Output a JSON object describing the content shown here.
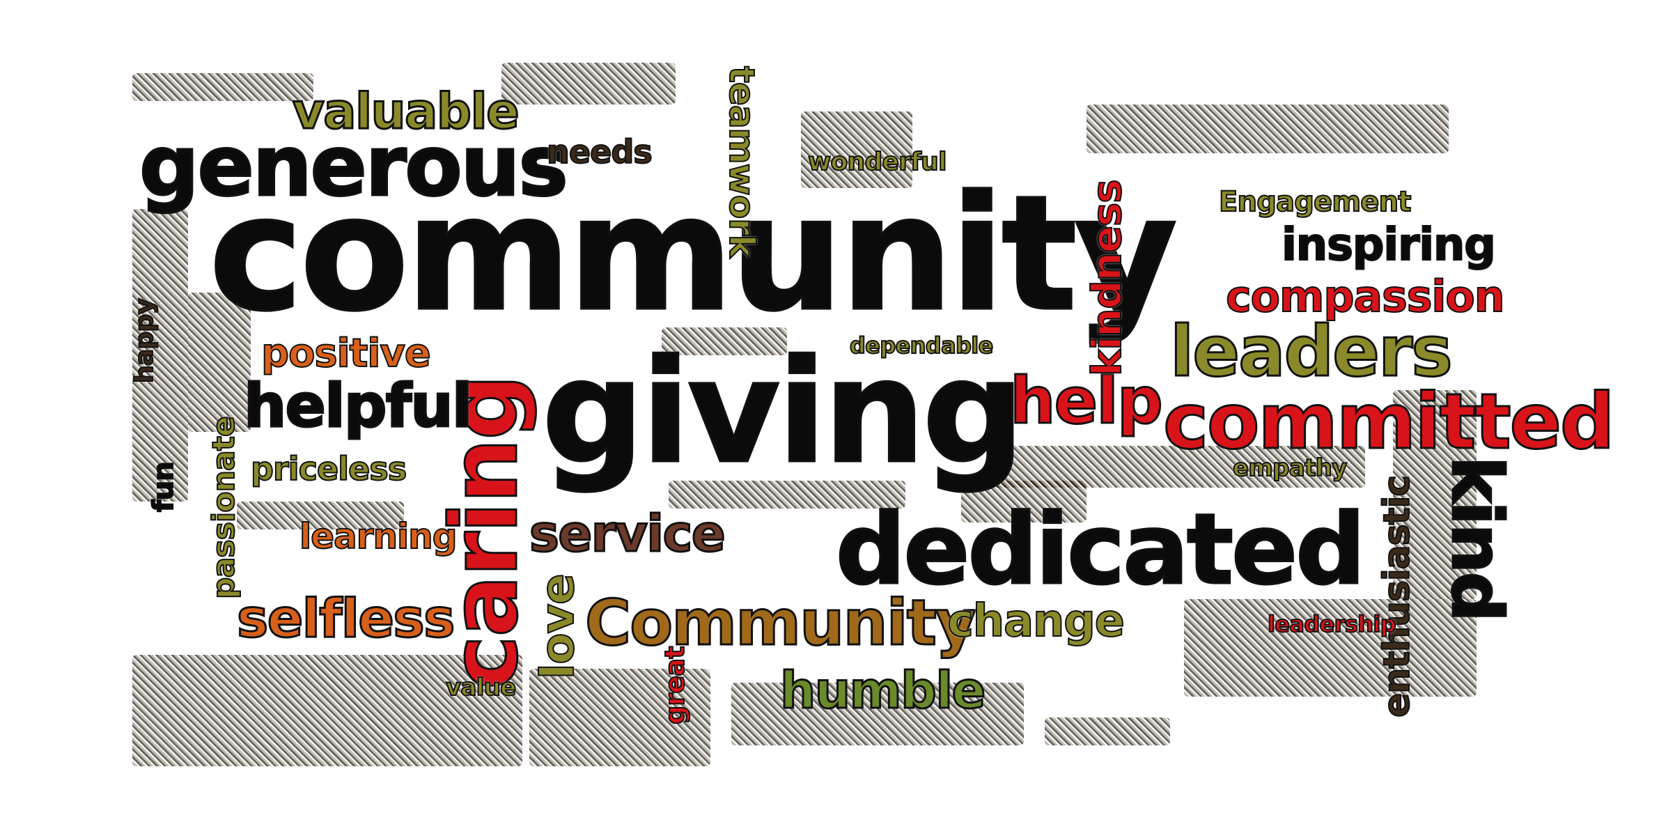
{
  "words": {
    "community": "community",
    "giving": "giving",
    "caring": "caring",
    "dedicated": "dedicated",
    "generous": "generous",
    "committed": "committed",
    "leaders": "leaders",
    "helpful": "helpful",
    "help": "help",
    "kind": "kind",
    "kindness": "kindness",
    "Community": "Community",
    "service": "service",
    "selfless": "selfless",
    "valuable": "valuable",
    "compassion": "compassion",
    "inspiring": "inspiring",
    "positive": "positive",
    "humble": "humble",
    "change": "change",
    "love": "love",
    "learning": "learning",
    "teamwork": "teamwork",
    "enthusiastic": "enthusiastic",
    "passionate": "passionate",
    "priceless": "priceless",
    "needs": "needs",
    "fun": "fun",
    "value": "value",
    "great": "great",
    "Engagement": "Engagement",
    "empathy": "empathy",
    "dependable": "dependable",
    "happy": "happy",
    "wonderful": "wonderful",
    "leadership": "leadership"
  },
  "colors": {
    "black": "#111111",
    "olive": "#8a8a2a",
    "red": "#d8141a",
    "orange": "#d8601a",
    "brown": "#8a5a2a",
    "darkolive": "#6b6b22"
  }
}
